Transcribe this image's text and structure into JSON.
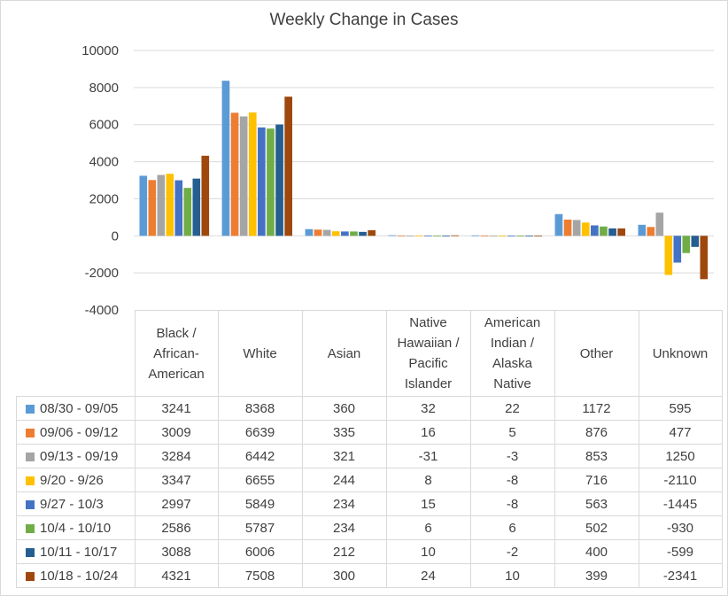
{
  "chart_data": {
    "type": "bar",
    "title": "Weekly Change in Cases",
    "categories": [
      "Black / African-American",
      "White",
      "Asian",
      "Native Hawaiian / Pacific Islander",
      "American Indian / Alaska Native",
      "Other",
      "Unknown"
    ],
    "category_lines": [
      [
        "Black /",
        "African-",
        "American"
      ],
      [
        "White"
      ],
      [
        "Asian"
      ],
      [
        "Native",
        "Hawaiian /",
        "Pacific",
        "Islander"
      ],
      [
        "American",
        "Indian /",
        "Alaska",
        "Native"
      ],
      [
        "Other"
      ],
      [
        "Unknown"
      ]
    ],
    "ylim": [
      -4000,
      10000
    ],
    "yticks": [
      10000,
      8000,
      6000,
      4000,
      2000,
      0,
      -2000,
      -4000
    ],
    "grid": true,
    "legend": "data-table",
    "series": [
      {
        "name": "08/30 - 09/05",
        "color": "#5b9bd5",
        "values": [
          3241,
          8368,
          360,
          32,
          22,
          1172,
          595
        ]
      },
      {
        "name": "09/06 - 09/12",
        "color": "#ed7d31",
        "values": [
          3009,
          6639,
          335,
          16,
          5,
          876,
          477
        ]
      },
      {
        "name": "09/13 - 09/19",
        "color": "#a5a5a5",
        "values": [
          3284,
          6442,
          321,
          -31,
          -3,
          853,
          1250
        ]
      },
      {
        "name": "9/20 - 9/26",
        "color": "#ffc000",
        "values": [
          3347,
          6655,
          244,
          8,
          -8,
          716,
          -2110
        ]
      },
      {
        "name": "9/27 - 10/3",
        "color": "#4472c4",
        "values": [
          2997,
          5849,
          234,
          15,
          -8,
          563,
          -1445
        ]
      },
      {
        "name": "10/4 - 10/10",
        "color": "#70ad47",
        "values": [
          2586,
          5787,
          234,
          6,
          6,
          502,
          -930
        ]
      },
      {
        "name": "10/11 - 10/17",
        "color": "#255e91",
        "values": [
          3088,
          6006,
          212,
          10,
          -2,
          400,
          -599
        ]
      },
      {
        "name": "10/18 - 10/24",
        "color": "#9e480e",
        "values": [
          4321,
          7508,
          300,
          24,
          10,
          399,
          -2341
        ]
      }
    ]
  }
}
